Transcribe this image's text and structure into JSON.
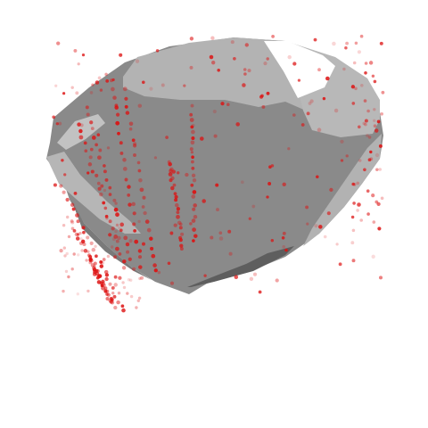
{
  "scene": {
    "type": "3d-point-cloud-over-surface-mesh",
    "background_color": "#ffffff",
    "mesh_fill": "#8c8c8c",
    "mesh_highlight": "#b4b4b4",
    "mesh_shadow": "#5a5a5a",
    "point_color": "#dd1111"
  }
}
